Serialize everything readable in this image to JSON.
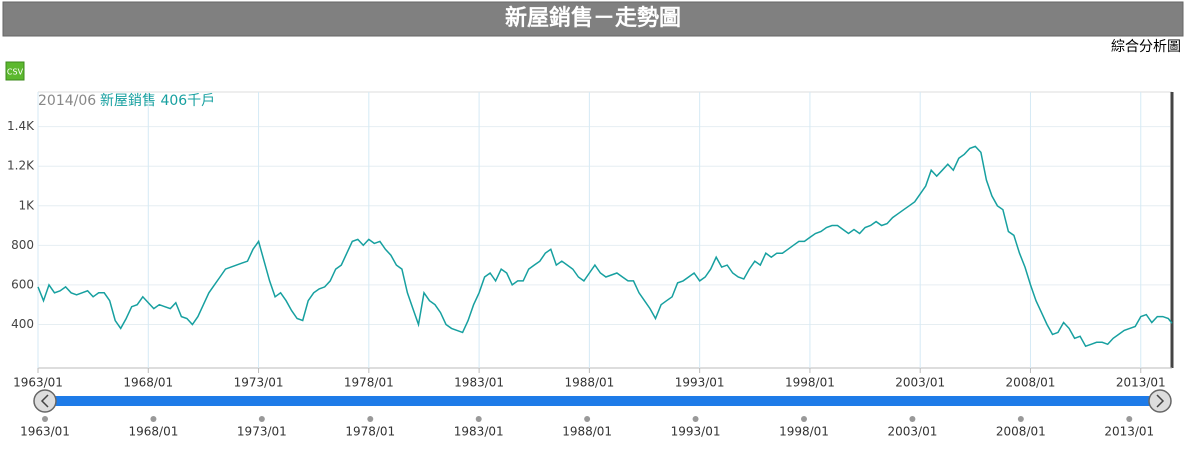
{
  "chart_data": {
    "type": "line",
    "title": "新屋銷售－走勢圖",
    "subtitle": "綜合分析圖",
    "csv_label": "CSV",
    "annotation": {
      "date": "2014/06",
      "text": "新屋銷售 406千戶"
    },
    "xlim": [
      "1963/01",
      "2014/06"
    ],
    "ylim": [
      180,
      1575
    ],
    "yticks": [
      400,
      600,
      800,
      {
        "value": 1000,
        "label": "1K"
      },
      {
        "value": 1200,
        "label": "1.2K"
      },
      {
        "value": 1400,
        "label": "1.4K"
      }
    ],
    "xticks": [
      "1963/01",
      "1968/01",
      "1973/01",
      "1978/01",
      "1983/01",
      "1988/01",
      "1993/01",
      "1998/01",
      "2003/01",
      "2008/01",
      "2013/01"
    ],
    "grid": true,
    "x": [
      "1963/01",
      "1963/04",
      "1963/07",
      "1963/10",
      "1964/01",
      "1964/04",
      "1964/07",
      "1964/10",
      "1965/01",
      "1965/04",
      "1965/07",
      "1965/10",
      "1966/01",
      "1966/04",
      "1966/07",
      "1966/10",
      "1967/01",
      "1967/04",
      "1967/07",
      "1967/10",
      "1968/01",
      "1968/04",
      "1968/07",
      "1968/10",
      "1969/01",
      "1969/04",
      "1969/07",
      "1969/10",
      "1970/01",
      "1970/04",
      "1970/07",
      "1970/10",
      "1971/01",
      "1971/04",
      "1971/07",
      "1971/10",
      "1972/01",
      "1972/04",
      "1972/07",
      "1972/10",
      "1973/01",
      "1973/04",
      "1973/07",
      "1973/10",
      "1974/01",
      "1974/04",
      "1974/07",
      "1974/10",
      "1975/01",
      "1975/04",
      "1975/07",
      "1975/10",
      "1976/01",
      "1976/04",
      "1976/07",
      "1976/10",
      "1977/01",
      "1977/04",
      "1977/07",
      "1977/10",
      "1978/01",
      "1978/04",
      "1978/07",
      "1978/10",
      "1979/01",
      "1979/04",
      "1979/07",
      "1979/10",
      "1980/01",
      "1980/04",
      "1980/07",
      "1980/10",
      "1981/01",
      "1981/04",
      "1981/07",
      "1981/10",
      "1982/01",
      "1982/04",
      "1982/07",
      "1982/10",
      "1983/01",
      "1983/04",
      "1983/07",
      "1983/10",
      "1984/01",
      "1984/04",
      "1984/07",
      "1984/10",
      "1985/01",
      "1985/04",
      "1985/07",
      "1985/10",
      "1986/01",
      "1986/04",
      "1986/07",
      "1986/10",
      "1987/01",
      "1987/04",
      "1987/07",
      "1987/10",
      "1988/01",
      "1988/04",
      "1988/07",
      "1988/10",
      "1989/01",
      "1989/04",
      "1989/07",
      "1989/10",
      "1990/01",
      "1990/04",
      "1990/07",
      "1990/10",
      "1991/01",
      "1991/04",
      "1991/07",
      "1991/10",
      "1992/01",
      "1992/04",
      "1992/07",
      "1992/10",
      "1993/01",
      "1993/04",
      "1993/07",
      "1993/10",
      "1994/01",
      "1994/04",
      "1994/07",
      "1994/10",
      "1995/01",
      "1995/04",
      "1995/07",
      "1995/10",
      "1996/01",
      "1996/04",
      "1996/07",
      "1996/10",
      "1997/01",
      "1997/04",
      "1997/07",
      "1997/10",
      "1998/01",
      "1998/04",
      "1998/07",
      "1998/10",
      "1999/01",
      "1999/04",
      "1999/07",
      "1999/10",
      "2000/01",
      "2000/04",
      "2000/07",
      "2000/10",
      "2001/01",
      "2001/04",
      "2001/07",
      "2001/10",
      "2002/01",
      "2002/04",
      "2002/07",
      "2002/10",
      "2003/01",
      "2003/04",
      "2003/07",
      "2003/10",
      "2004/01",
      "2004/04",
      "2004/07",
      "2004/10",
      "2005/01",
      "2005/04",
      "2005/07",
      "2005/10",
      "2006/01",
      "2006/04",
      "2006/07",
      "2006/10",
      "2007/01",
      "2007/04",
      "2007/07",
      "2007/10",
      "2008/01",
      "2008/04",
      "2008/07",
      "2008/10",
      "2009/01",
      "2009/04",
      "2009/07",
      "2009/10",
      "2010/01",
      "2010/04",
      "2010/07",
      "2010/10",
      "2011/01",
      "2011/04",
      "2011/07",
      "2011/10",
      "2012/01",
      "2012/04",
      "2012/07",
      "2012/10",
      "2013/01",
      "2013/04",
      "2013/07",
      "2013/10",
      "2014/01",
      "2014/04",
      "2014/06"
    ],
    "series": [
      {
        "name": "新屋銷售",
        "color": "#17a0a0",
        "values": [
          590,
          520,
          600,
          560,
          570,
          590,
          560,
          550,
          560,
          570,
          540,
          560,
          560,
          520,
          420,
          380,
          430,
          490,
          500,
          540,
          510,
          480,
          500,
          490,
          480,
          510,
          440,
          430,
          400,
          440,
          500,
          560,
          600,
          640,
          680,
          690,
          700,
          710,
          720,
          780,
          820,
          720,
          620,
          540,
          560,
          520,
          470,
          430,
          420,
          520,
          560,
          580,
          590,
          620,
          680,
          700,
          760,
          820,
          830,
          800,
          830,
          810,
          820,
          780,
          750,
          700,
          680,
          560,
          480,
          400,
          560,
          520,
          500,
          460,
          400,
          380,
          370,
          360,
          420,
          500,
          560,
          640,
          660,
          620,
          680,
          660,
          600,
          620,
          620,
          680,
          700,
          720,
          760,
          780,
          700,
          720,
          700,
          680,
          640,
          620,
          660,
          700,
          660,
          640,
          650,
          660,
          640,
          620,
          620,
          560,
          520,
          480,
          430,
          500,
          520,
          540,
          610,
          620,
          640,
          660,
          620,
          640,
          680,
          740,
          690,
          700,
          660,
          640,
          630,
          680,
          720,
          700,
          760,
          740,
          760,
          760,
          780,
          800,
          820,
          820,
          840,
          860,
          870,
          890,
          900,
          900,
          880,
          860,
          880,
          860,
          890,
          900,
          920,
          900,
          910,
          940,
          960,
          980,
          1000,
          1020,
          1060,
          1100,
          1180,
          1150,
          1180,
          1210,
          1180,
          1240,
          1260,
          1290,
          1300,
          1270,
          1130,
          1050,
          1000,
          980,
          870,
          850,
          760,
          690,
          600,
          520,
          460,
          400,
          350,
          360,
          410,
          380,
          330,
          340,
          290,
          300,
          310,
          310,
          300,
          330,
          350,
          370,
          380,
          390,
          440,
          450,
          410,
          440,
          440,
          430,
          406
        ]
      }
    ]
  }
}
